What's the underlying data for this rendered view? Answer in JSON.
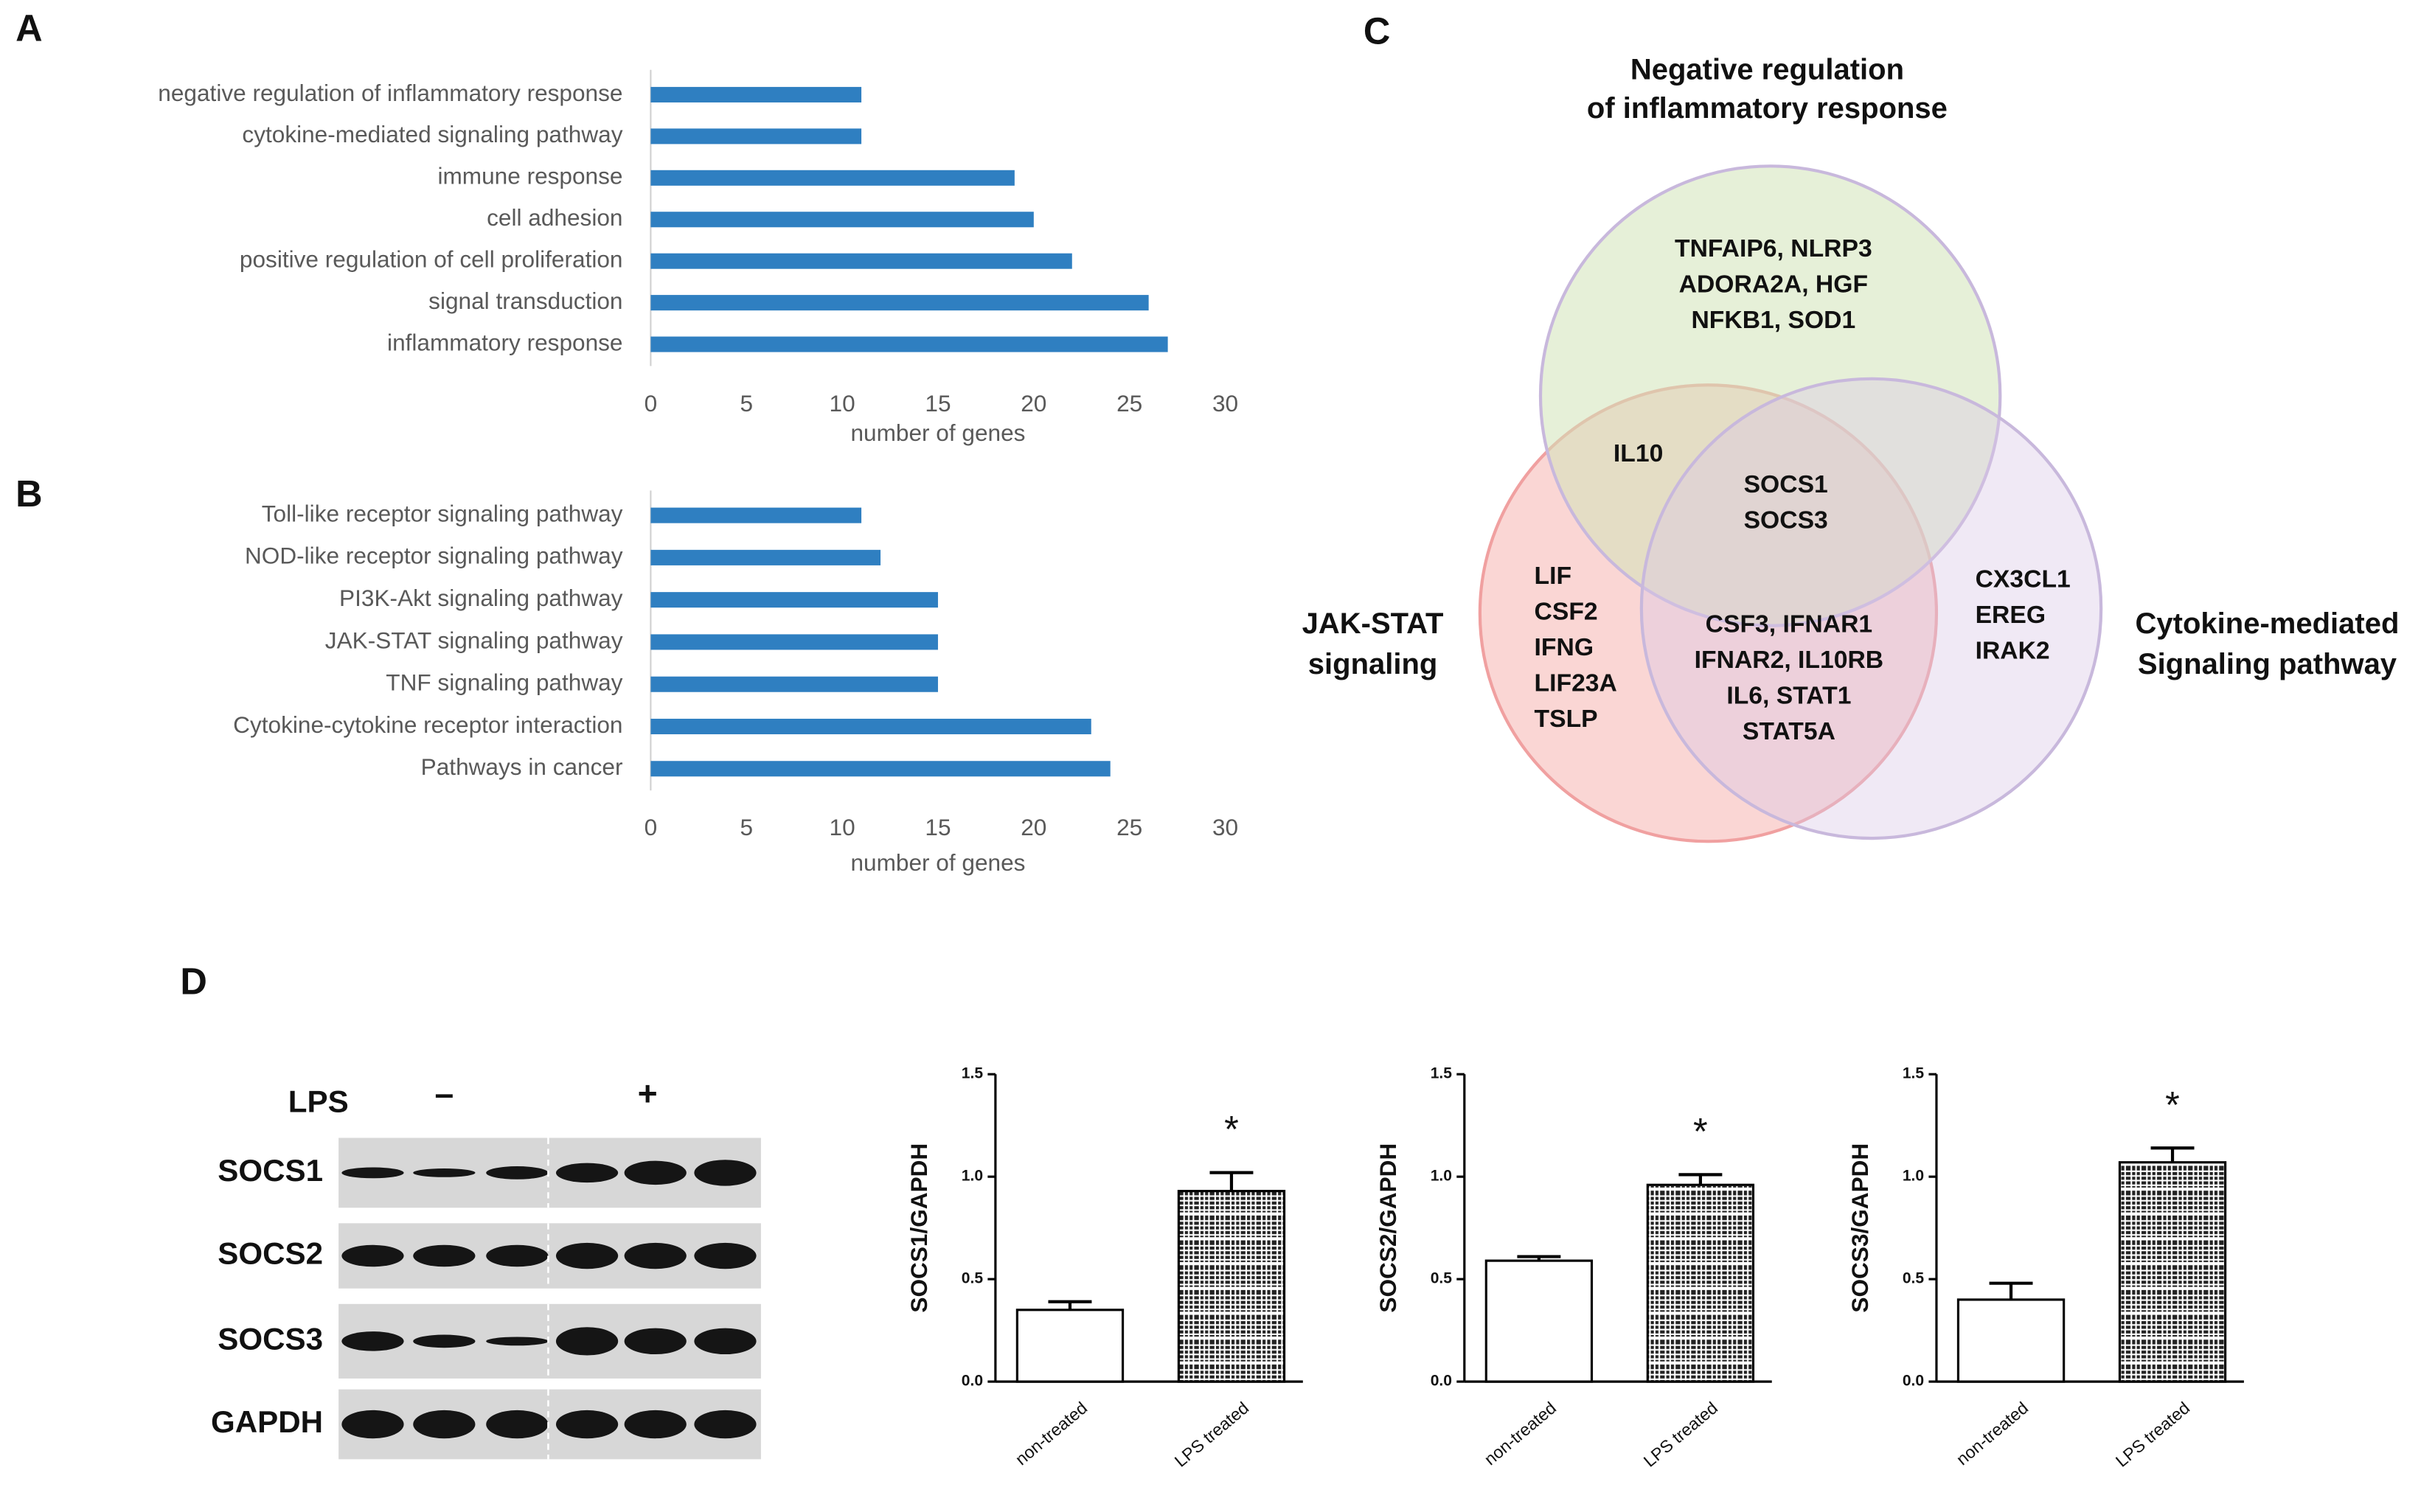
{
  "chart_data": [
    {
      "type": "hbar",
      "panel": "A",
      "xlabel": "number of genes",
      "color": "#2f7fc1",
      "categories": [
        "negative regulation of inflammatory response",
        "cytokine-mediated signaling pathway",
        "immune response",
        "cell adhesion",
        "positive regulation of cell proliferation",
        "signal transduction",
        "inflammatory response"
      ],
      "values": [
        11,
        11,
        19,
        20,
        22,
        26,
        27
      ],
      "xlim": [
        0,
        30
      ],
      "xticks": [
        0,
        5,
        10,
        15,
        20,
        25,
        30
      ]
    },
    {
      "type": "hbar",
      "panel": "B",
      "xlabel": "number of genes",
      "color": "#2f7fc1",
      "categories": [
        "Toll-like receptor signaling pathway",
        "NOD-like receptor signaling pathway",
        "PI3K-Akt signaling pathway",
        "JAK-STAT signaling pathway",
        "TNF signaling pathway",
        "Cytokine-cytokine receptor interaction",
        "Pathways in cancer"
      ],
      "values": [
        11,
        12,
        15,
        15,
        15,
        23,
        24
      ],
      "xlim": [
        0,
        30
      ],
      "xticks": [
        0,
        5,
        10,
        15,
        20,
        25,
        30
      ]
    },
    {
      "type": "bar",
      "ylabel": "SOCS1/GAPDH",
      "annotation": "*",
      "categories": [
        "non-treated",
        "LPS treated"
      ],
      "values": [
        0.35,
        0.93
      ],
      "errors": [
        0.04,
        0.09
      ],
      "ylim": [
        0,
        1.5
      ],
      "yticks": [
        {
          "value": 0,
          "label": "0.0"
        },
        {
          "value": 0.5,
          "label": "0.5"
        },
        {
          "value": 1,
          "label": "1.0"
        },
        {
          "value": 1.5,
          "label": "1.5"
        }
      ]
    },
    {
      "type": "bar",
      "ylabel": "SOCS2/GAPDH",
      "annotation": "*",
      "categories": [
        "non-treated",
        "LPS treated"
      ],
      "values": [
        0.59,
        0.96
      ],
      "errors": [
        0.02,
        0.05
      ],
      "ylim": [
        0,
        1.5
      ],
      "yticks": [
        {
          "value": 0,
          "label": "0.0"
        },
        {
          "value": 0.5,
          "label": "0.5"
        },
        {
          "value": 1,
          "label": "1.0"
        },
        {
          "value": 1.5,
          "label": "1.5"
        }
      ]
    },
    {
      "type": "bar",
      "ylabel": "SOCS3/GAPDH",
      "annotation": "*",
      "categories": [
        "non-treated",
        "LPS treated"
      ],
      "values": [
        0.4,
        1.07
      ],
      "errors": [
        0.08,
        0.07
      ],
      "ylim": [
        0,
        1.5
      ],
      "yticks": [
        {
          "value": 0,
          "label": "0.0"
        },
        {
          "value": 0.5,
          "label": "0.5"
        },
        {
          "value": 1,
          "label": "1.0"
        },
        {
          "value": 1.5,
          "label": "1.5"
        }
      ]
    }
  ],
  "venn": {
    "panel": "C",
    "sets": [
      {
        "label": [
          "Negative regulation",
          "of inflammatory response"
        ]
      },
      {
        "label": [
          "JAK-STAT",
          "signaling"
        ]
      },
      {
        "label": [
          "Cytokine-mediated",
          "Signaling pathway"
        ]
      }
    ],
    "regions": [
      [
        "TNFAIP6, NLRP3",
        "ADORA2A, HGF",
        "NFKB1, SOD1"
      ],
      [
        "IL10"
      ],
      [
        "SOCS1",
        "SOCS3"
      ],
      [
        "LIF",
        "CSF2",
        "IFNG",
        "LIF23A",
        "TSLP"
      ],
      [
        "CSF3, IFNAR1",
        "IFNAR2, IL10RB",
        "IL6, STAT1",
        "STAT5A"
      ],
      [
        "CX3CL1",
        "EREG",
        "IRAK2"
      ]
    ]
  },
  "blot": {
    "panel": "D",
    "treatment": "LPS",
    "groups": [
      "–",
      "+"
    ],
    "rows": [
      "SOCS1",
      "SOCS2",
      "SOCS3",
      "GAPDH"
    ]
  }
}
